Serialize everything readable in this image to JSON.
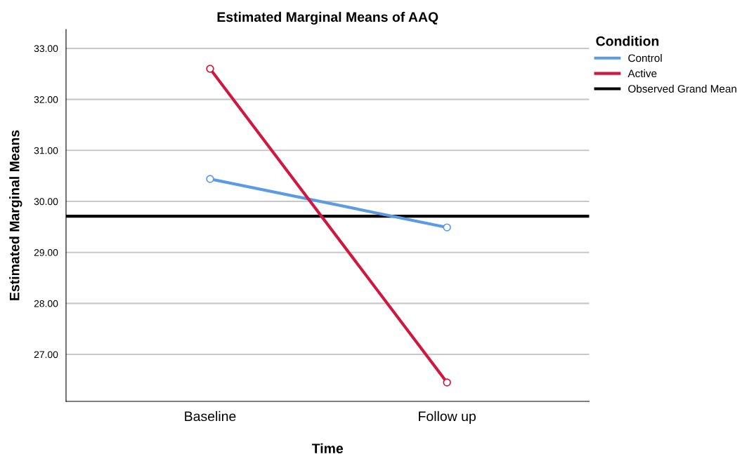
{
  "chart_data": {
    "type": "line",
    "title": "Estimated Marginal Means of AAQ",
    "xlabel": "Time",
    "ylabel": "Estimated Marginal Means",
    "legend_title": "Condition",
    "categories": [
      "Baseline",
      "Follow up"
    ],
    "series": [
      {
        "name": "Control",
        "color": "#5b9be6",
        "values": [
          30.44,
          29.49
        ]
      },
      {
        "name": "Active",
        "color": "#d2173e",
        "values": [
          32.6,
          26.45
        ]
      }
    ],
    "ref_lines": [
      {
        "axis": "y",
        "value": 29.71,
        "label": "Observed Grand Mean",
        "color": "#000000"
      }
    ],
    "ylim": [
      26.08,
      33.37
    ],
    "yticks": [
      {
        "value": 27,
        "label": "27.00"
      },
      {
        "value": 28,
        "label": "28.00"
      },
      {
        "value": 29,
        "label": "29.00"
      },
      {
        "value": 30,
        "label": "30.00"
      },
      {
        "value": 31,
        "label": "31.00"
      },
      {
        "value": 32,
        "label": "32.00"
      },
      {
        "value": 33,
        "label": "33.00"
      }
    ],
    "grid": "y",
    "legend": "top right",
    "marker": "circle",
    "line_style": "solid"
  }
}
